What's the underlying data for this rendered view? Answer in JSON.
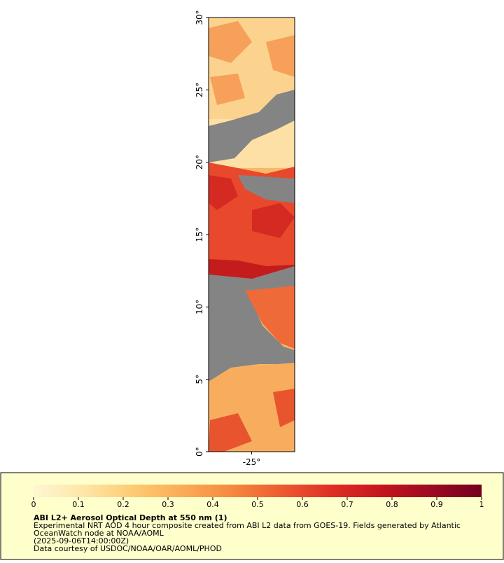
{
  "map": {
    "latlim": [
      0,
      30
    ],
    "lonlim": [
      -28,
      -22
    ],
    "lat_ticks": [
      {
        "value": 0,
        "label": "0°"
      },
      {
        "value": 5,
        "label": "5°"
      },
      {
        "value": 10,
        "label": "10°"
      },
      {
        "value": 15,
        "label": "15°"
      },
      {
        "value": 20,
        "label": "20°"
      },
      {
        "value": 25,
        "label": "25°"
      },
      {
        "value": 30,
        "label": "30°"
      }
    ],
    "lon_ticks": [
      {
        "value": -25,
        "label": "-25°"
      }
    ]
  },
  "colorbar": {
    "range": [
      0,
      1
    ],
    "ticks": [
      0,
      0.1,
      0.2,
      0.3,
      0.4,
      0.5,
      0.6,
      0.7,
      0.8,
      0.9,
      1
    ],
    "colors": [
      "#fff6d2",
      "#fee6a8",
      "#fdcb73",
      "#fbab55",
      "#f5883f",
      "#ec5a30",
      "#df2d26",
      "#c4151f",
      "#9b0a22",
      "#73001f"
    ]
  },
  "legend": {
    "title": "ABI L2+ Aerosol Optical Depth at 550 nm (1)",
    "lines": [
      "Experimental NRT AOD 4 hour composite created from ABI L2 data from GOES-19. Fields generated by Atlantic",
      "OceanWatch node at NOAA/AOML",
      "(2025-09-06T14:00:00Z)",
      "Data courtesy of USDOC/NOAA/OAR/AOML/PHOD"
    ]
  }
}
